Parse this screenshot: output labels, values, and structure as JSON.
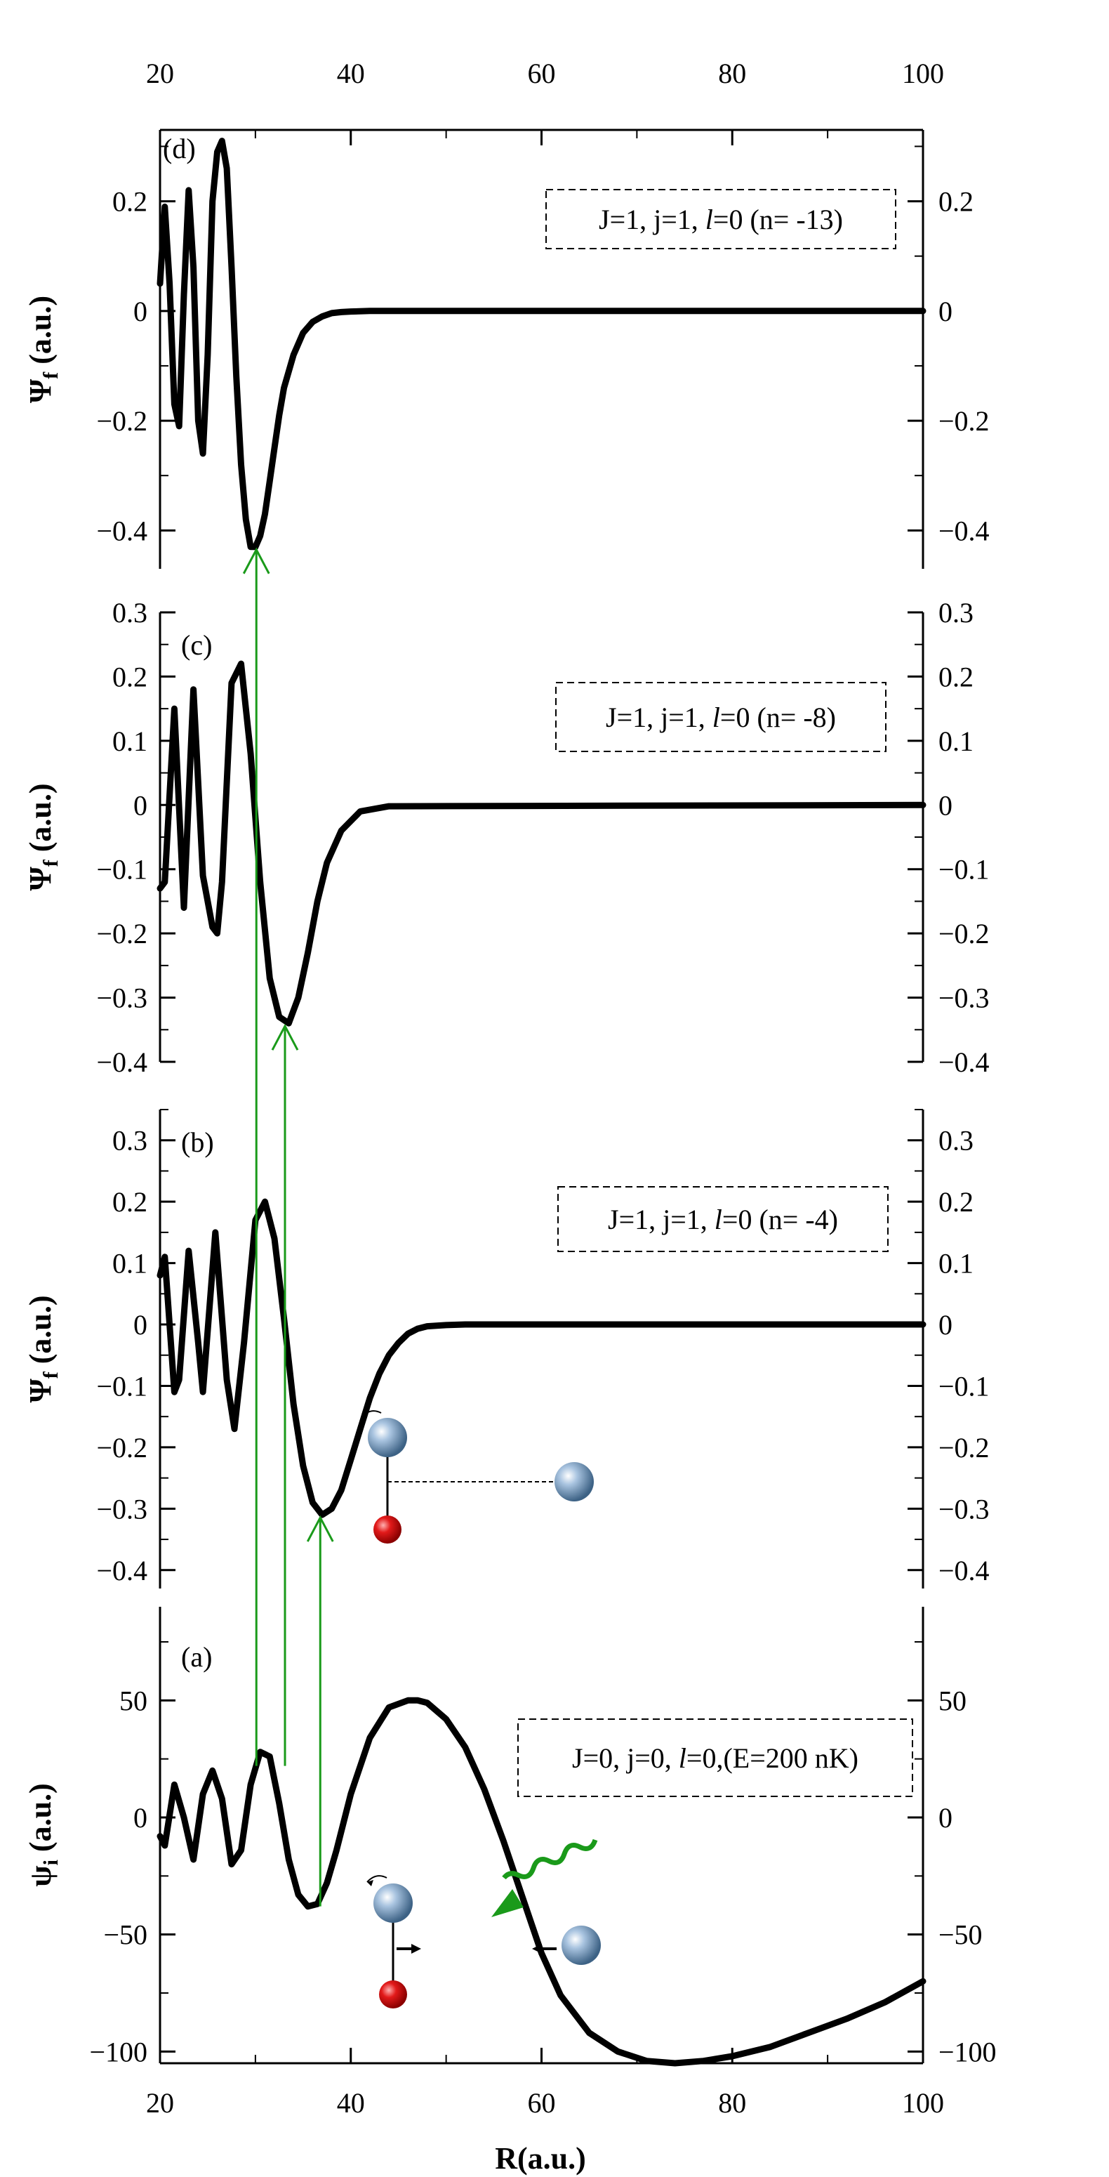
{
  "figure": {
    "x_axis_label": "R(a.u.)",
    "x_ticks": [
      "20",
      "40",
      "60",
      "80",
      "100"
    ],
    "transition_line_color": "#1a9a1a",
    "curve_color": "#000000",
    "photon_color": "#1a9a1a",
    "light_atom_color": "#dd1111",
    "heavy_atom_color": "#7fa3c8"
  },
  "chart_data": [
    {
      "type": "line",
      "panel": "(d)",
      "ylabel": "Ψ_f (a.u.)",
      "ylabel_main": "Ψ",
      "ylabel_sub": "f",
      "ylabel_unit": " (a.u.)",
      "legend": "J=1, j=1, l=0 (n= -13)",
      "legend_parts": [
        "J=1, j=1, ",
        "l",
        "=0 (n= -13)"
      ],
      "xlim": [
        20,
        100
      ],
      "ylim": [
        -0.47,
        0.33
      ],
      "yticks": [
        0.2,
        0,
        -0.2,
        -0.4
      ],
      "ytick_labels": [
        "0.2",
        "0",
        "−0.2",
        "−0.4"
      ],
      "grid": false,
      "series": [
        {
          "x": [
            20,
            20.5,
            21,
            21.5,
            22,
            22.5,
            23,
            23.5,
            24,
            24.5,
            25,
            25.5,
            26,
            26.5,
            27,
            27.5,
            28,
            28.5,
            29,
            29.5,
            30,
            30.5,
            31,
            31.5,
            32,
            32.5,
            33,
            34,
            35,
            36,
            37,
            38,
            39,
            40,
            42,
            44,
            100
          ],
          "y": [
            0.05,
            0.19,
            0.05,
            -0.17,
            -0.21,
            0.03,
            0.22,
            0.08,
            -0.2,
            -0.26,
            -0.08,
            0.2,
            0.29,
            0.31,
            0.26,
            0.08,
            -0.12,
            -0.28,
            -0.38,
            -0.43,
            -0.43,
            -0.41,
            -0.37,
            -0.31,
            -0.25,
            -0.19,
            -0.14,
            -0.08,
            -0.04,
            -0.02,
            -0.01,
            -0.004,
            -0.002,
            -0.001,
            0,
            0,
            0
          ]
        }
      ]
    },
    {
      "type": "line",
      "panel": "(c)",
      "ylabel": "Ψ_f (a.u.)",
      "ylabel_main": "Ψ",
      "ylabel_sub": "f",
      "ylabel_unit": " (a.u.)",
      "legend": "J=1, j=1, l=0 (n= -8)",
      "legend_parts": [
        "J=1, j=1, ",
        "l",
        "=0 (n= -8)"
      ],
      "xlim": [
        20,
        100
      ],
      "ylim": [
        -0.4,
        0.3
      ],
      "yticks": [
        0.3,
        0.2,
        0.1,
        0,
        -0.1,
        -0.2,
        -0.3,
        -0.4
      ],
      "ytick_labels": [
        "0.3",
        "0.2",
        "0.1",
        "0",
        "−0.1",
        "−0.2",
        "−0.3",
        "−0.4"
      ],
      "grid": false,
      "series": [
        {
          "x": [
            20,
            20.5,
            21.5,
            22.5,
            23.5,
            24.5,
            25.5,
            26,
            26.5,
            27.5,
            28.5,
            29.5,
            30.5,
            31.5,
            32.5,
            33.5,
            34.5,
            35.5,
            36.5,
            37.5,
            39,
            41,
            44,
            100
          ],
          "y": [
            -0.13,
            -0.12,
            0.15,
            -0.16,
            0.18,
            -0.11,
            -0.19,
            -0.2,
            -0.12,
            0.19,
            0.22,
            0.08,
            -0.12,
            -0.27,
            -0.33,
            -0.34,
            -0.3,
            -0.23,
            -0.15,
            -0.09,
            -0.04,
            -0.01,
            -0.002,
            0
          ]
        }
      ]
    },
    {
      "type": "line",
      "panel": "(b)",
      "ylabel": "Ψ_f (a.u.)",
      "ylabel_main": "Ψ",
      "ylabel_sub": "f",
      "ylabel_unit": " (a.u.)",
      "legend": "J=1, j=1, l=0 (n= -4)",
      "legend_parts": [
        "J=1, j=1, ",
        "l",
        "=0 (n= -4)"
      ],
      "xlim": [
        20,
        100
      ],
      "ylim": [
        -0.43,
        0.35
      ],
      "yticks": [
        0.3,
        0.2,
        0.1,
        0,
        -0.1,
        -0.2,
        -0.3,
        -0.4
      ],
      "ytick_labels": [
        "0.3",
        "0.2",
        "0.1",
        "0",
        "−0.1",
        "−0.2",
        "−0.3",
        "−0.4"
      ],
      "grid": false,
      "series": [
        {
          "x": [
            20,
            20.5,
            21.5,
            22,
            23,
            24,
            24.5,
            25.8,
            27,
            27.8,
            28.8,
            30,
            31,
            32,
            33,
            34,
            35,
            36,
            37,
            38,
            39,
            40,
            41,
            42,
            43,
            44,
            45,
            46,
            47,
            48,
            50,
            52,
            55,
            100
          ],
          "y": [
            0.08,
            0.11,
            -0.11,
            -0.09,
            0.12,
            -0.03,
            -0.11,
            0.15,
            -0.09,
            -0.17,
            -0.03,
            0.17,
            0.2,
            0.14,
            0.01,
            -0.13,
            -0.23,
            -0.29,
            -0.31,
            -0.3,
            -0.27,
            -0.22,
            -0.17,
            -0.12,
            -0.08,
            -0.05,
            -0.03,
            -0.015,
            -0.007,
            -0.003,
            -0.001,
            0,
            0,
            0
          ]
        }
      ]
    },
    {
      "type": "line",
      "panel": "(a)",
      "ylabel": "ψ_i (a.u.)",
      "ylabel_main": "ψ",
      "ylabel_sub": "i",
      "ylabel_unit": " (a.u.)",
      "legend": "J=0, j=0, l=0,(E=200 nK)",
      "legend_parts": [
        "J=0, j=0, ",
        "l",
        "=0,(E=200 nK)"
      ],
      "xlim": [
        20,
        100
      ],
      "ylim": [
        -105,
        90
      ],
      "yticks": [
        50,
        0,
        -50,
        -100
      ],
      "ytick_labels": [
        "50",
        "0",
        "−50",
        "−100"
      ],
      "grid": false,
      "series": [
        {
          "x": [
            20,
            20.5,
            21.5,
            22.5,
            23.5,
            24.5,
            25.5,
            26.5,
            27.5,
            28.5,
            29.5,
            30.5,
            31.5,
            32.5,
            33.5,
            34.5,
            35.5,
            36.5,
            37.5,
            38.5,
            40,
            42,
            44,
            46,
            47,
            48,
            50,
            52,
            54,
            56,
            58,
            60,
            62,
            65,
            68,
            71,
            74,
            77,
            80,
            84,
            88,
            92,
            96,
            100
          ],
          "y": [
            -8,
            -12,
            14,
            0,
            -18,
            10,
            20,
            8,
            -20,
            -14,
            14,
            28,
            26,
            6,
            -18,
            -33,
            -38,
            -37,
            -28,
            -14,
            10,
            34,
            47,
            50,
            50,
            49,
            42,
            30,
            12,
            -10,
            -34,
            -58,
            -76,
            -92,
            -100,
            -104,
            -105,
            -104,
            -102,
            -98,
            -92,
            -86,
            -79,
            -70
          ]
        }
      ]
    }
  ]
}
